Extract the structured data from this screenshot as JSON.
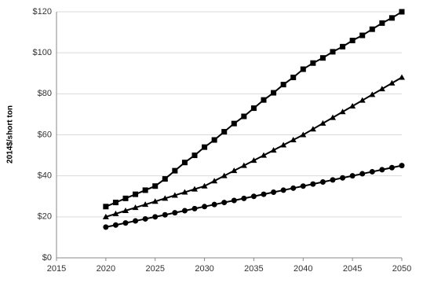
{
  "chart_data": {
    "type": "line",
    "y_label": "2014$/short ton",
    "x": [
      2020,
      2021,
      2022,
      2023,
      2024,
      2025,
      2026,
      2027,
      2028,
      2029,
      2030,
      2031,
      2032,
      2033,
      2034,
      2035,
      2036,
      2037,
      2038,
      2039,
      2040,
      2041,
      2042,
      2043,
      2044,
      2045,
      2046,
      2047,
      2048,
      2049,
      2050
    ],
    "series": [
      {
        "marker": "square",
        "color": "#000000",
        "values": [
          25,
          27,
          29,
          31,
          33,
          35,
          38.5,
          42.5,
          46.5,
          50,
          54,
          57.5,
          61.5,
          65.5,
          69,
          73,
          77,
          80.5,
          84.5,
          88,
          92,
          95,
          97.5,
          100.5,
          103,
          106,
          108.5,
          111.5,
          114.5,
          117,
          120
        ]
      },
      {
        "marker": "triangle",
        "color": "#000000",
        "values": [
          20,
          21.5,
          23,
          24.5,
          26,
          27.5,
          29,
          30.5,
          32,
          33.5,
          35,
          37.5,
          40,
          42.5,
          45,
          47.5,
          50,
          52.5,
          55,
          57.5,
          60,
          62.8,
          65.6,
          68.4,
          71.2,
          74,
          76.8,
          79.6,
          82.4,
          85.2,
          88
        ]
      },
      {
        "marker": "circle",
        "color": "#000000",
        "values": [
          15,
          16,
          17,
          18,
          19,
          20,
          21,
          22,
          23,
          24,
          25,
          26,
          27,
          28,
          29,
          30,
          31,
          32,
          33,
          34,
          35,
          36,
          37,
          38,
          39,
          40,
          41,
          42,
          43,
          44,
          45
        ]
      }
    ],
    "xlim": [
      2015,
      2050
    ],
    "xticks": [
      2015,
      2020,
      2025,
      2030,
      2035,
      2040,
      2045,
      2050
    ],
    "ylim": [
      0,
      120
    ],
    "yticks": [
      {
        "value": 0,
        "label": "$0"
      },
      {
        "value": 20,
        "label": "$20"
      },
      {
        "value": 40,
        "label": "$40"
      },
      {
        "value": 60,
        "label": "$60"
      },
      {
        "value": 80,
        "label": "$80"
      },
      {
        "value": 100,
        "label": "$100"
      },
      {
        "value": 120,
        "label": "$120"
      }
    ],
    "grid": true
  }
}
